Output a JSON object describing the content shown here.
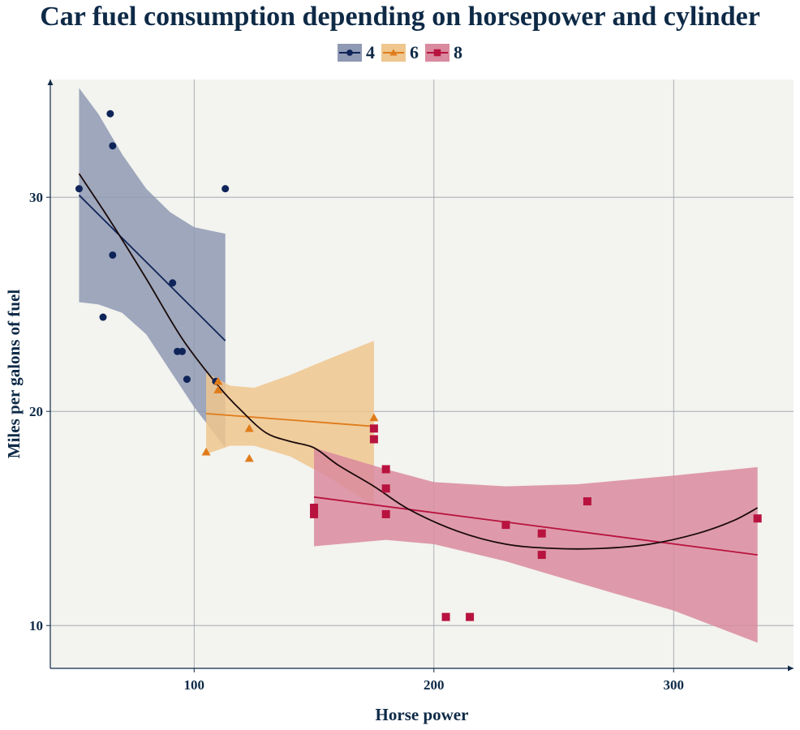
{
  "chart_data": {
    "type": "scatter",
    "title": "Car fuel consumption depending on horsepower and cylinder",
    "xlabel": "Horse power",
    "ylabel": "Miles per galons of fuel",
    "xlim": [
      40,
      350
    ],
    "ylim": [
      8,
      35.5
    ],
    "xticks": [
      100,
      200,
      300
    ],
    "yticks": [
      10,
      20,
      30
    ],
    "grid": true,
    "legend_position": "top-center",
    "colors": {
      "background": "#f3f3ef",
      "grid": "#9aa0a8",
      "axis": "#0e2a47",
      "text": "#0e2a47",
      "overall_smooth": "#1a0a0a"
    },
    "series": [
      {
        "name": "4",
        "marker": "circle",
        "color": "#0f2459",
        "ribbon_color": "#8e99b3",
        "points": [
          {
            "x": 52,
            "y": 30.4
          },
          {
            "x": 65,
            "y": 33.9
          },
          {
            "x": 66,
            "y": 32.4
          },
          {
            "x": 66,
            "y": 27.3
          },
          {
            "x": 62,
            "y": 24.4
          },
          {
            "x": 91,
            "y": 26.0
          },
          {
            "x": 93,
            "y": 22.8
          },
          {
            "x": 95,
            "y": 22.8
          },
          {
            "x": 97,
            "y": 21.5
          },
          {
            "x": 109,
            "y": 21.4
          },
          {
            "x": 113,
            "y": 30.4
          }
        ],
        "fit": {
          "x": [
            52,
            113
          ],
          "y": [
            30.1,
            23.3
          ]
        },
        "ribbon": [
          {
            "x": 52,
            "lower": 25.1,
            "upper": 35.1
          },
          {
            "x": 60,
            "lower": 25.0,
            "upper": 33.9
          },
          {
            "x": 70,
            "lower": 24.6,
            "upper": 32.0
          },
          {
            "x": 80,
            "lower": 23.6,
            "upper": 30.4
          },
          {
            "x": 90,
            "lower": 21.9,
            "upper": 29.3
          },
          {
            "x": 100,
            "lower": 20.2,
            "upper": 28.6
          },
          {
            "x": 113,
            "lower": 18.3,
            "upper": 28.3
          }
        ]
      },
      {
        "name": "6",
        "marker": "triangle",
        "color": "#e07b1a",
        "ribbon_color": "#eec68e",
        "points": [
          {
            "x": 105,
            "y": 18.1
          },
          {
            "x": 110,
            "y": 21.0
          },
          {
            "x": 110,
            "y": 21.4
          },
          {
            "x": 123,
            "y": 19.2
          },
          {
            "x": 123,
            "y": 17.8
          },
          {
            "x": 175,
            "y": 19.7
          }
        ],
        "fit": {
          "x": [
            105,
            175
          ],
          "y": [
            19.9,
            19.3
          ]
        },
        "ribbon": [
          {
            "x": 105,
            "lower": 18.0,
            "upper": 21.8
          },
          {
            "x": 115,
            "lower": 18.4,
            "upper": 21.2
          },
          {
            "x": 125,
            "lower": 18.4,
            "upper": 21.1
          },
          {
            "x": 140,
            "lower": 17.9,
            "upper": 21.7
          },
          {
            "x": 155,
            "lower": 17.0,
            "upper": 22.4
          },
          {
            "x": 175,
            "lower": 15.6,
            "upper": 23.3
          }
        ]
      },
      {
        "name": "8",
        "marker": "square",
        "color": "#b8133f",
        "ribbon_color": "#d98a9e",
        "points": [
          {
            "x": 150,
            "y": 15.5
          },
          {
            "x": 150,
            "y": 15.2
          },
          {
            "x": 175,
            "y": 18.7
          },
          {
            "x": 175,
            "y": 19.2
          },
          {
            "x": 180,
            "y": 16.4
          },
          {
            "x": 180,
            "y": 17.3
          },
          {
            "x": 180,
            "y": 15.2
          },
          {
            "x": 205,
            "y": 10.4
          },
          {
            "x": 215,
            "y": 10.4
          },
          {
            "x": 230,
            "y": 14.7
          },
          {
            "x": 245,
            "y": 14.3
          },
          {
            "x": 245,
            "y": 13.3
          },
          {
            "x": 264,
            "y": 15.8
          },
          {
            "x": 335,
            "y": 15.0
          }
        ],
        "fit": {
          "x": [
            150,
            335
          ],
          "y": [
            16.0,
            13.3
          ]
        },
        "ribbon": [
          {
            "x": 150,
            "lower": 13.7,
            "upper": 18.3
          },
          {
            "x": 180,
            "lower": 14.0,
            "upper": 17.3
          },
          {
            "x": 200,
            "lower": 13.8,
            "upper": 16.7
          },
          {
            "x": 230,
            "lower": 13.0,
            "upper": 16.5
          },
          {
            "x": 260,
            "lower": 12.0,
            "upper": 16.6
          },
          {
            "x": 300,
            "lower": 10.7,
            "upper": 17.0
          },
          {
            "x": 335,
            "lower": 9.2,
            "upper": 17.4
          }
        ]
      }
    ],
    "overall_smooth": [
      {
        "x": 52,
        "y": 31.1
      },
      {
        "x": 65,
        "y": 28.9
      },
      {
        "x": 80,
        "y": 26.2
      },
      {
        "x": 95,
        "y": 23.4
      },
      {
        "x": 110,
        "y": 21.2
      },
      {
        "x": 120,
        "y": 20.0
      },
      {
        "x": 130,
        "y": 19.0
      },
      {
        "x": 140,
        "y": 18.6
      },
      {
        "x": 150,
        "y": 18.3
      },
      {
        "x": 160,
        "y": 17.5
      },
      {
        "x": 175,
        "y": 16.5
      },
      {
        "x": 190,
        "y": 15.4
      },
      {
        "x": 210,
        "y": 14.4
      },
      {
        "x": 230,
        "y": 13.8
      },
      {
        "x": 250,
        "y": 13.6
      },
      {
        "x": 270,
        "y": 13.6
      },
      {
        "x": 290,
        "y": 13.8
      },
      {
        "x": 310,
        "y": 14.3
      },
      {
        "x": 325,
        "y": 14.9
      },
      {
        "x": 335,
        "y": 15.5
      }
    ]
  }
}
